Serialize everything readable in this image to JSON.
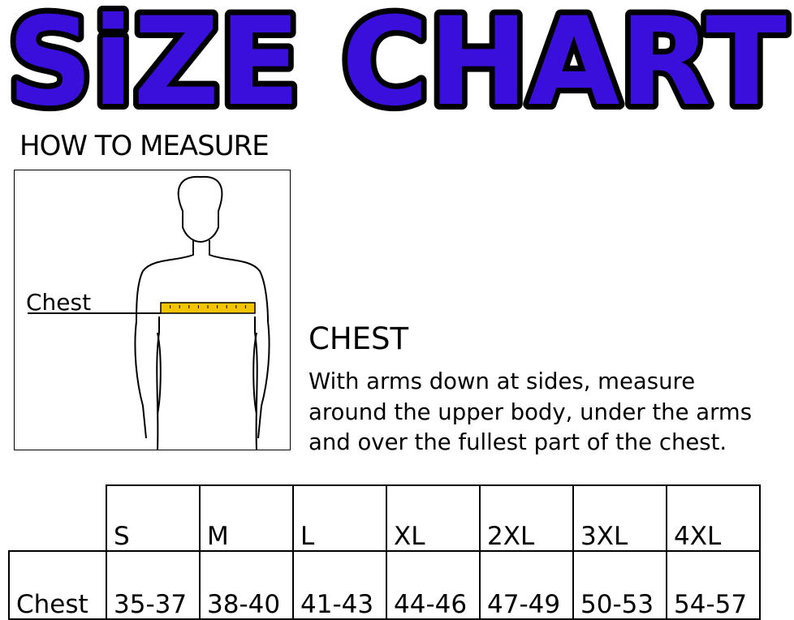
{
  "title": "SiZE CHART",
  "title_color": "#3a0fdc",
  "how_to_measure": "HOW TO MEASURE",
  "figure": {
    "chest_label": "Chest",
    "tape_color": "#f5c400"
  },
  "section": {
    "heading": "CHEST",
    "lines": [
      "With arms down at sides, measure",
      "around the upper body, under the arms",
      "and over the fullest part of the chest."
    ]
  },
  "table": {
    "sizes": [
      "S",
      "M",
      "L",
      "XL",
      "2XL",
      "3XL",
      "4XL"
    ],
    "row_label": "Chest",
    "values": [
      "35-37",
      "38-40",
      "41-43",
      "44-46",
      "47-49",
      "50-53",
      "54-57"
    ]
  }
}
